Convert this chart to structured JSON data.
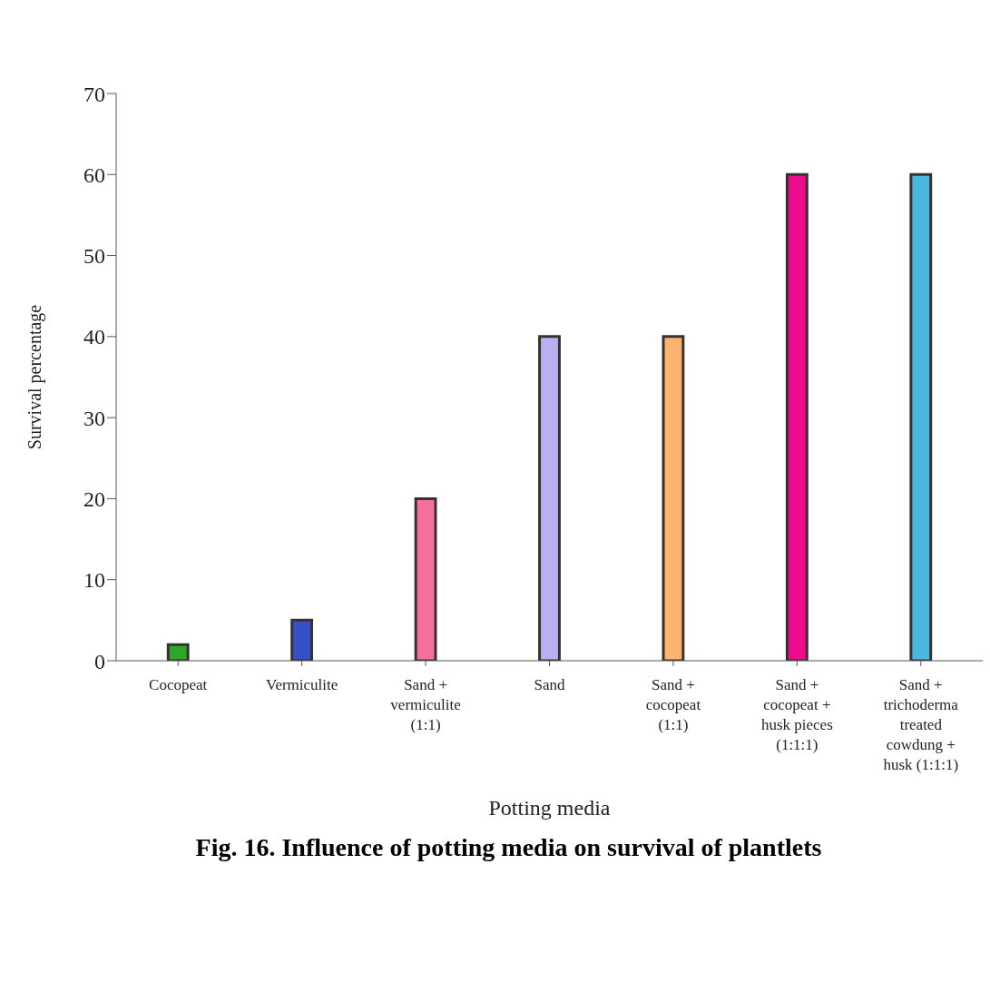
{
  "chart_data": {
    "type": "bar",
    "title": "Fig. 16. Influence of potting media on survival of plantlets",
    "xlabel": "Potting media",
    "ylabel": "Survival percentage",
    "categories": [
      "Cocopeat",
      "Vermiculite",
      "Sand +\nvermiculite\n(1:1)",
      "Sand",
      "Sand +\ncocopeat\n(1:1)",
      "Sand +\ncocopeat +\nhusk pieces\n(1:1:1)",
      "Sand +\ntrichoderma\ntreated\ncowdung +\nhusk (1:1:1)"
    ],
    "values": [
      2,
      5,
      20,
      40,
      40,
      60,
      60
    ],
    "colors": [
      "#2ea82a",
      "#3650c8",
      "#f4709e",
      "#b8b0f0",
      "#fbb46e",
      "#ec0c8c",
      "#48b8e0"
    ],
    "ylim": [
      0,
      70
    ],
    "yticks": [
      0,
      10,
      20,
      30,
      40,
      50,
      60,
      70
    ],
    "grid": false,
    "legend": false
  }
}
